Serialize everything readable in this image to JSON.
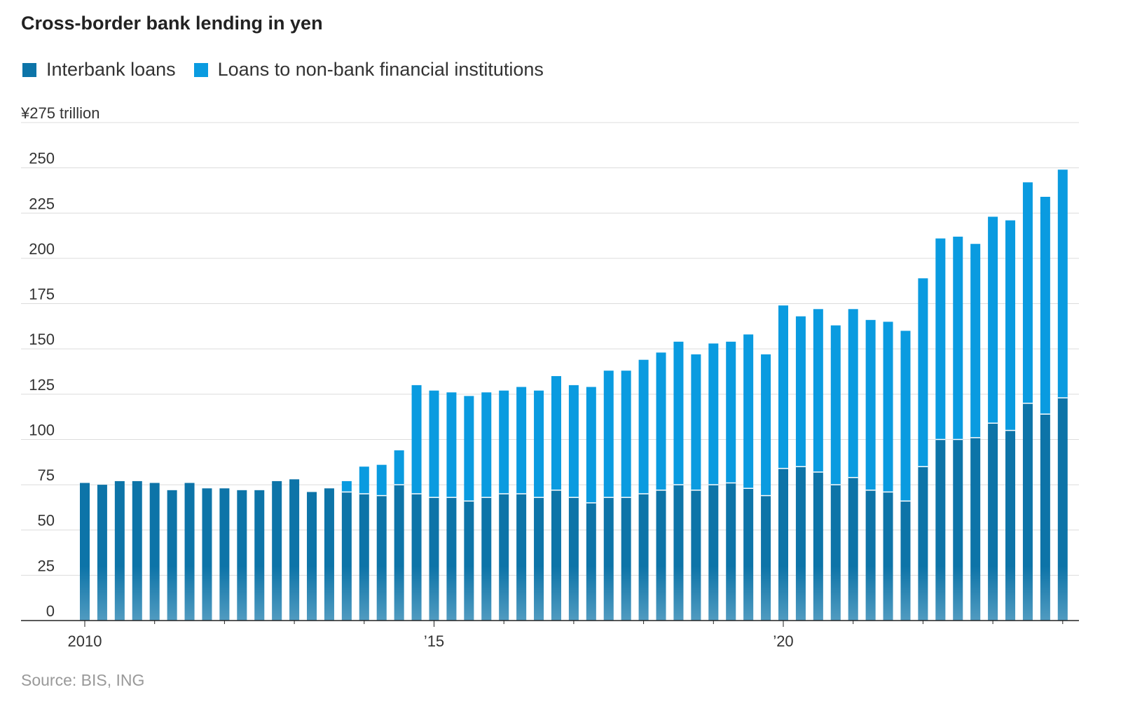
{
  "chart_data": {
    "type": "bar",
    "stacked": true,
    "title": "Cross-border bank lending in yen",
    "y_unit_label": "¥275 trillion",
    "ylim": [
      0,
      275
    ],
    "y_ticks": [
      0,
      25,
      50,
      75,
      100,
      125,
      150,
      175,
      200,
      225,
      250
    ],
    "y_tick_labels": [
      "0",
      "25",
      "50",
      "75",
      "100",
      "125",
      "150",
      "175",
      "200",
      "225",
      "250"
    ],
    "grid": true,
    "legend_position": "top-left",
    "x_start": 2010.0,
    "x_step": 0.25,
    "x_ticks": [
      2010,
      2015,
      2020
    ],
    "x_tick_labels": [
      "2010",
      "’15",
      "’20"
    ],
    "series": [
      {
        "name": "Interbank loans",
        "color": "#0d74a8",
        "values": [
          76,
          75,
          77,
          77,
          76,
          72,
          76,
          73,
          73,
          72,
          72,
          77,
          78,
          71,
          73,
          71,
          70,
          69,
          75,
          70,
          68,
          68,
          66,
          68,
          70,
          70,
          68,
          72,
          68,
          65,
          68,
          68,
          70,
          72,
          75,
          72,
          75,
          76,
          73,
          69,
          84,
          85,
          82,
          75,
          79,
          72,
          71,
          66,
          85,
          100,
          100,
          101,
          109,
          105,
          120,
          114,
          123
        ]
      },
      {
        "name": "Loans to non-bank financial institutions",
        "color": "#0a9be0",
        "values": [
          0,
          0,
          0,
          0,
          0,
          0,
          0,
          0,
          0,
          0,
          0,
          0,
          0,
          0,
          0,
          6,
          15,
          17,
          19,
          60,
          59,
          58,
          58,
          58,
          57,
          59,
          59,
          63,
          62,
          64,
          70,
          70,
          74,
          76,
          79,
          75,
          78,
          78,
          85,
          78,
          90,
          83,
          90,
          88,
          93,
          94,
          94,
          94,
          104,
          111,
          112,
          107,
          114,
          116,
          122,
          120,
          126
        ]
      }
    ],
    "source": "Source: BIS, ING"
  }
}
